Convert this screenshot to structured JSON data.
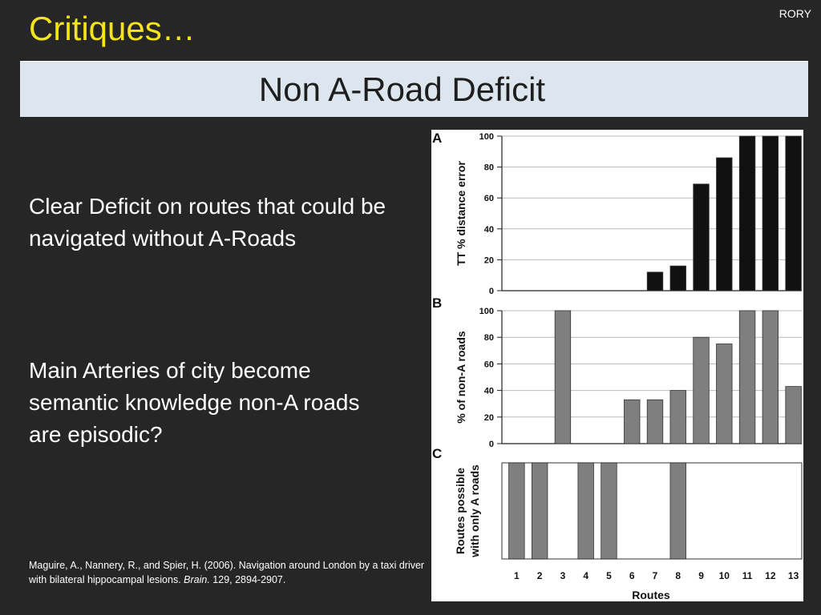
{
  "slide": {
    "title": "Critiques…",
    "author": "RORY",
    "subtitle": "Non A-Road Deficit",
    "bullets": [
      "Clear Deficit on routes that could be navigated without A-Roads",
      "Main Arteries of city become semantic knowledge non-A roads are episodic?"
    ],
    "citation": {
      "before": "Maguire, A., Nannery, R., and Spier, H. (2006). Navigation around London by a taxi driver with bilateral hippocampal lesions. ",
      "journal": "Brain.",
      "after": " 129, 2894-2907."
    }
  },
  "chart_data": [
    {
      "type": "bar",
      "panel_label": "A",
      "categories": [
        "1",
        "2",
        "3",
        "4",
        "5",
        "6",
        "7",
        "8",
        "9",
        "10",
        "11",
        "12",
        "13"
      ],
      "values": [
        0,
        0,
        0,
        0,
        0,
        0,
        12,
        16,
        69,
        86,
        100,
        100,
        100
      ],
      "ylabel": "TT % distance error",
      "ylim": [
        0,
        100
      ],
      "yticks": [
        "0",
        "20",
        "40",
        "60",
        "80",
        "100"
      ],
      "bar_color": "#111111",
      "grid": true
    },
    {
      "type": "bar",
      "panel_label": "B",
      "categories": [
        "1",
        "2",
        "3",
        "4",
        "5",
        "6",
        "7",
        "8",
        "9",
        "10",
        "11",
        "12",
        "13"
      ],
      "values": [
        0,
        0,
        100,
        0,
        0,
        33,
        33,
        40,
        80,
        75,
        100,
        100,
        43
      ],
      "ylabel": "% of non-A roads",
      "ylim": [
        0,
        100
      ],
      "yticks": [
        "0",
        "20",
        "40",
        "60",
        "80",
        "100"
      ],
      "bar_color": "#7f7f7f",
      "grid": true
    },
    {
      "type": "bar",
      "panel_label": "C",
      "categories": [
        "1",
        "2",
        "3",
        "4",
        "5",
        "6",
        "7",
        "8",
        "9",
        "10",
        "11",
        "12",
        "13"
      ],
      "values": [
        1,
        1,
        0,
        1,
        1,
        0,
        0,
        1,
        0,
        0,
        0,
        0,
        0
      ],
      "ylabel": "Routes possible with only A roads",
      "ylabel_lines": [
        "Routes possible",
        "with only A roads"
      ],
      "xlabel": "Routes",
      "ylim": [
        0,
        1
      ],
      "bar_color": "#7f7f7f",
      "grid": false
    }
  ]
}
